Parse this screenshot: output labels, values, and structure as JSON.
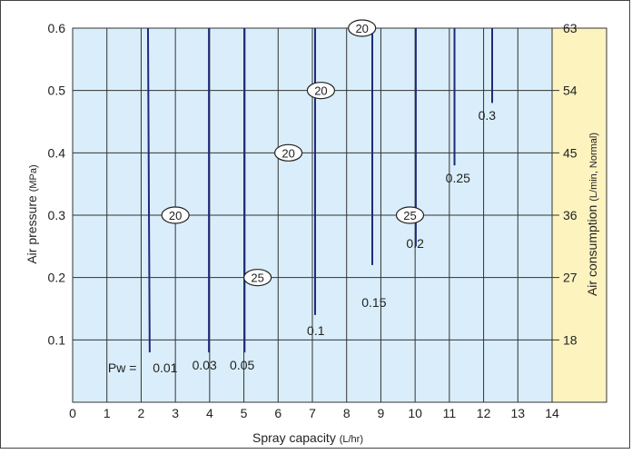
{
  "chart_data": {
    "type": "line",
    "xlabel": "Spray capacity",
    "xlabel_unit": "(L/hr)",
    "ylabel": "Air pressure",
    "ylabel_unit": "(MPa)",
    "y2label": "Air consumption",
    "y2label_unit": "(L/min, Normal)",
    "xlim": [
      0,
      14
    ],
    "ylim": [
      0,
      0.6
    ],
    "x_ticks": [
      "0",
      "1",
      "2",
      "3",
      "4",
      "5",
      "6",
      "7",
      "8",
      "9",
      "10",
      "11",
      "12",
      "13",
      "14"
    ],
    "y_ticks": [
      "0.1",
      "0.2",
      "0.3",
      "0.4",
      "0.5",
      "0.6"
    ],
    "y_tick_values": [
      0.1,
      0.2,
      0.3,
      0.4,
      0.5,
      0.6
    ],
    "y2_ticks": [
      {
        "label": "18",
        "at_pressure": 0.1
      },
      {
        "label": "27",
        "at_pressure": 0.2
      },
      {
        "label": "36",
        "at_pressure": 0.3
      },
      {
        "label": "45",
        "at_pressure": 0.4
      },
      {
        "label": "54",
        "at_pressure": 0.5
      },
      {
        "label": "63",
        "at_pressure": 0.6
      }
    ],
    "grid": true,
    "colors": {
      "plot_bg": "#d9eefa",
      "y2_band": "#fdf3bf",
      "curve": "#1f2a7a",
      "grid": "#333333"
    },
    "series": [
      {
        "name": "0.01",
        "x": [
          2.25,
          2.2
        ],
        "y": [
          0.08,
          0.6
        ],
        "label": "0.01",
        "label_x": 2.7,
        "label_y": 0.055
      },
      {
        "name": "0.03",
        "x": [
          3.98,
          3.98
        ],
        "y": [
          0.08,
          0.6
        ],
        "label": "0.03",
        "label_x": 3.85,
        "label_y": 0.06
      },
      {
        "name": "0.05",
        "x": [
          5.02,
          5.02
        ],
        "y": [
          0.08,
          0.6
        ],
        "label": "0.05",
        "label_x": 4.95,
        "label_y": 0.06
      },
      {
        "name": "0.1",
        "x": [
          7.08,
          7.08
        ],
        "y": [
          0.14,
          0.6
        ],
        "label": "0.1",
        "label_x": 7.1,
        "label_y": 0.115
      },
      {
        "name": "0.15",
        "x": [
          8.75,
          8.75
        ],
        "y": [
          0.22,
          0.6
        ],
        "label": "0.15",
        "label_x": 8.8,
        "label_y": 0.16
      },
      {
        "name": "0.2",
        "x": [
          10.02,
          10.02
        ],
        "y": [
          0.25,
          0.6
        ],
        "label": "0.2",
        "label_x": 10.0,
        "label_y": 0.255
      },
      {
        "name": "0.25",
        "x": [
          11.15,
          11.15
        ],
        "y": [
          0.38,
          0.6
        ],
        "label": "0.25",
        "label_x": 11.25,
        "label_y": 0.36
      },
      {
        "name": "0.3",
        "x": [
          12.25,
          12.25
        ],
        "y": [
          0.48,
          0.6
        ],
        "label": "0.3",
        "label_x": 12.1,
        "label_y": 0.46
      }
    ],
    "pw_label": "Pw =",
    "pw_label_pos": {
      "x": 1.45,
      "y": 0.055
    },
    "badges": [
      {
        "text": "20",
        "x": 8.45,
        "y": 0.6
      },
      {
        "text": "20",
        "x": 7.25,
        "y": 0.5
      },
      {
        "text": "20",
        "x": 6.3,
        "y": 0.4
      },
      {
        "text": "20",
        "x": 3.0,
        "y": 0.3
      },
      {
        "text": "25",
        "x": 9.85,
        "y": 0.3
      },
      {
        "text": "25",
        "x": 5.4,
        "y": 0.2
      }
    ]
  }
}
